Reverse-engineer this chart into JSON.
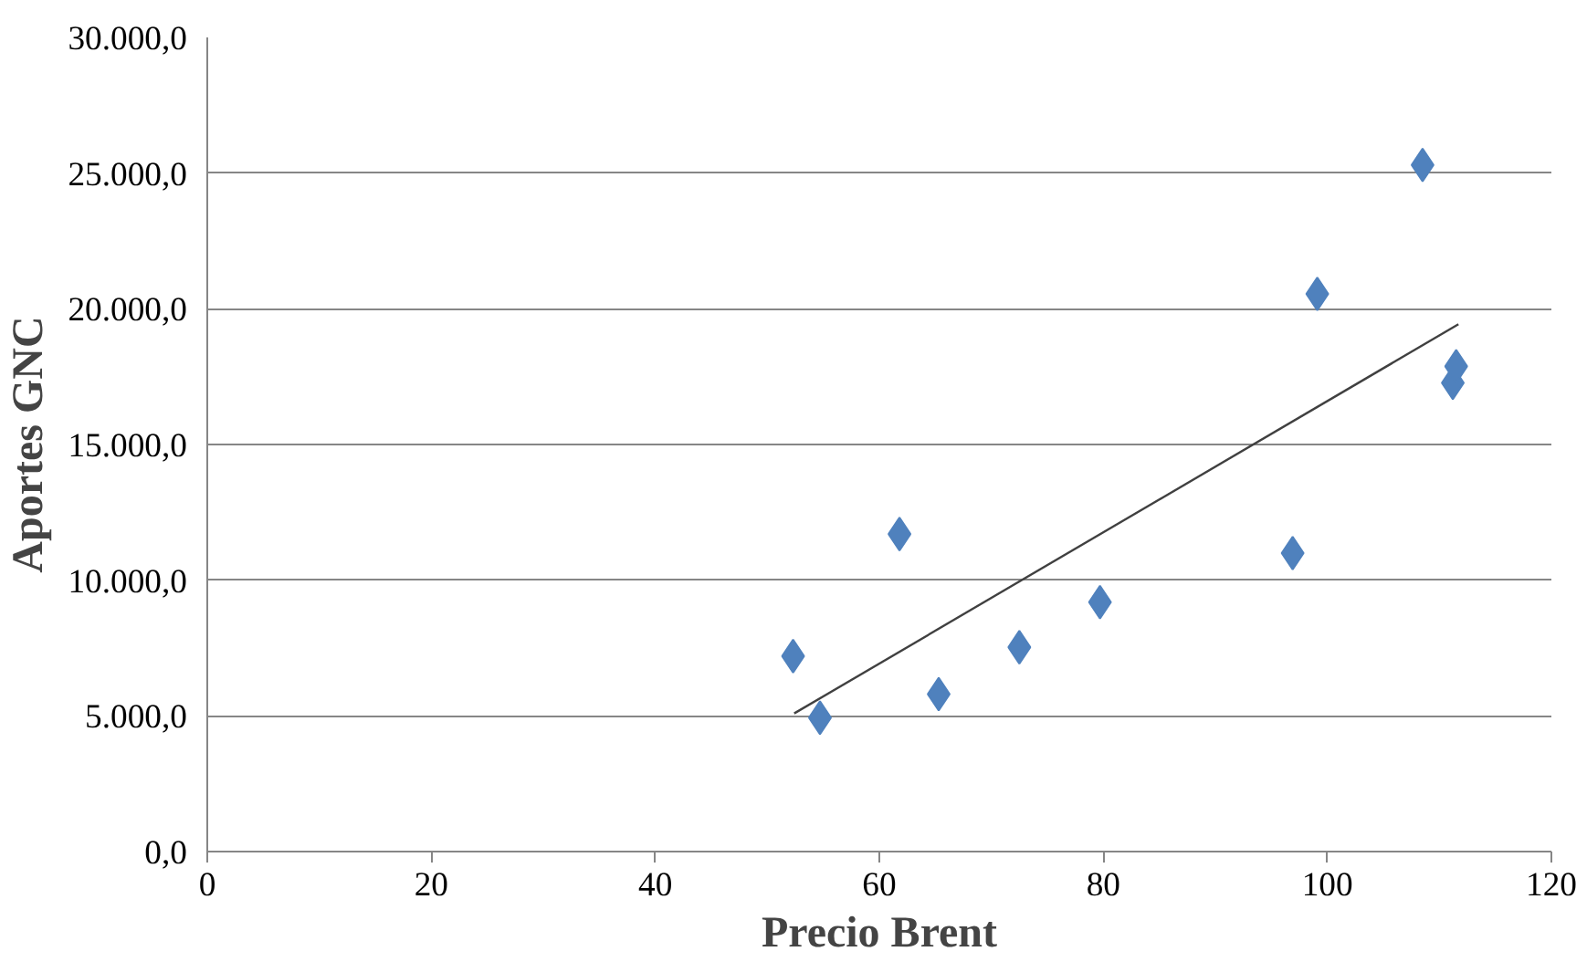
{
  "chart_data": {
    "type": "scatter",
    "xlabel": "Precio Brent",
    "ylabel": "Aportes GNC",
    "xlim": [
      0,
      120
    ],
    "xticks": [
      0,
      20,
      40,
      60,
      80,
      100,
      120
    ],
    "ylim": [
      0,
      30000
    ],
    "yticks": [
      {
        "value": 0,
        "label": "0,0"
      },
      {
        "value": 5000,
        "label": "5.000,0"
      },
      {
        "value": 10000,
        "label": "10.000,0"
      },
      {
        "value": 15000,
        "label": "15.000,0"
      },
      {
        "value": 20000,
        "label": "20.000,0"
      },
      {
        "value": 25000,
        "label": "25.000,0"
      },
      {
        "value": 30000,
        "label": "30.000,0"
      }
    ],
    "grid": "y",
    "marker": "diamond",
    "series": [
      {
        "color": "#4f81bd",
        "x": [
          52.3,
          54.7,
          61.8,
          65.3,
          72.5,
          79.7,
          96.9,
          99.1,
          108.5,
          111.2,
          111.5
        ],
        "values": [
          7200,
          4930,
          11700,
          5800,
          7530,
          9190,
          11000,
          20550,
          25300,
          17270,
          17880
        ]
      },
      {
        "type": "line",
        "color": "#404040",
        "marker": "none",
        "x": [
          52.4,
          111.7
        ],
        "values": [
          5090,
          19430
        ]
      }
    ]
  }
}
